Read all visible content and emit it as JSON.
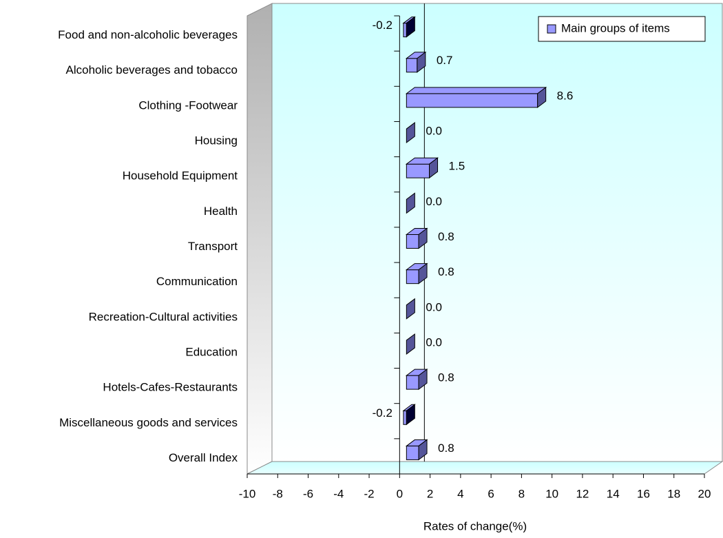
{
  "chart_data": {
    "type": "bar3d_horizontal",
    "categories": [
      "Food and non-alcoholic beverages",
      "Alcoholic beverages and tobacco",
      "Clothing -Footwear",
      "Housing",
      "Household Equipment",
      "Health",
      "Transport",
      "Communication",
      "Recreation-Cultural activities",
      "Education",
      "Hotels-Cafes-Restaurants",
      "Miscellaneous goods and services",
      "Overall Index"
    ],
    "series": [
      {
        "name": "Main groups of items",
        "color": "#9999ff",
        "values": [
          -0.2,
          0.7,
          8.6,
          0.0,
          1.5,
          0.0,
          0.8,
          0.8,
          0.0,
          0.0,
          0.8,
          -0.2,
          0.8
        ],
        "value_labels": [
          "-0.2",
          "0.7",
          "8.6",
          "0.0",
          "1.5",
          "0.0",
          "0.8",
          "0.8",
          "0.0",
          "0.0",
          "0.8",
          "-0.2",
          "0.8"
        ]
      }
    ],
    "xlabel": "Rates of change(%)",
    "xlim": [
      -10,
      20
    ],
    "xticks": [
      -10,
      -8,
      -6,
      -4,
      -2,
      0,
      2,
      4,
      6,
      8,
      10,
      12,
      14,
      16,
      18,
      20
    ],
    "legend": "top-right"
  }
}
